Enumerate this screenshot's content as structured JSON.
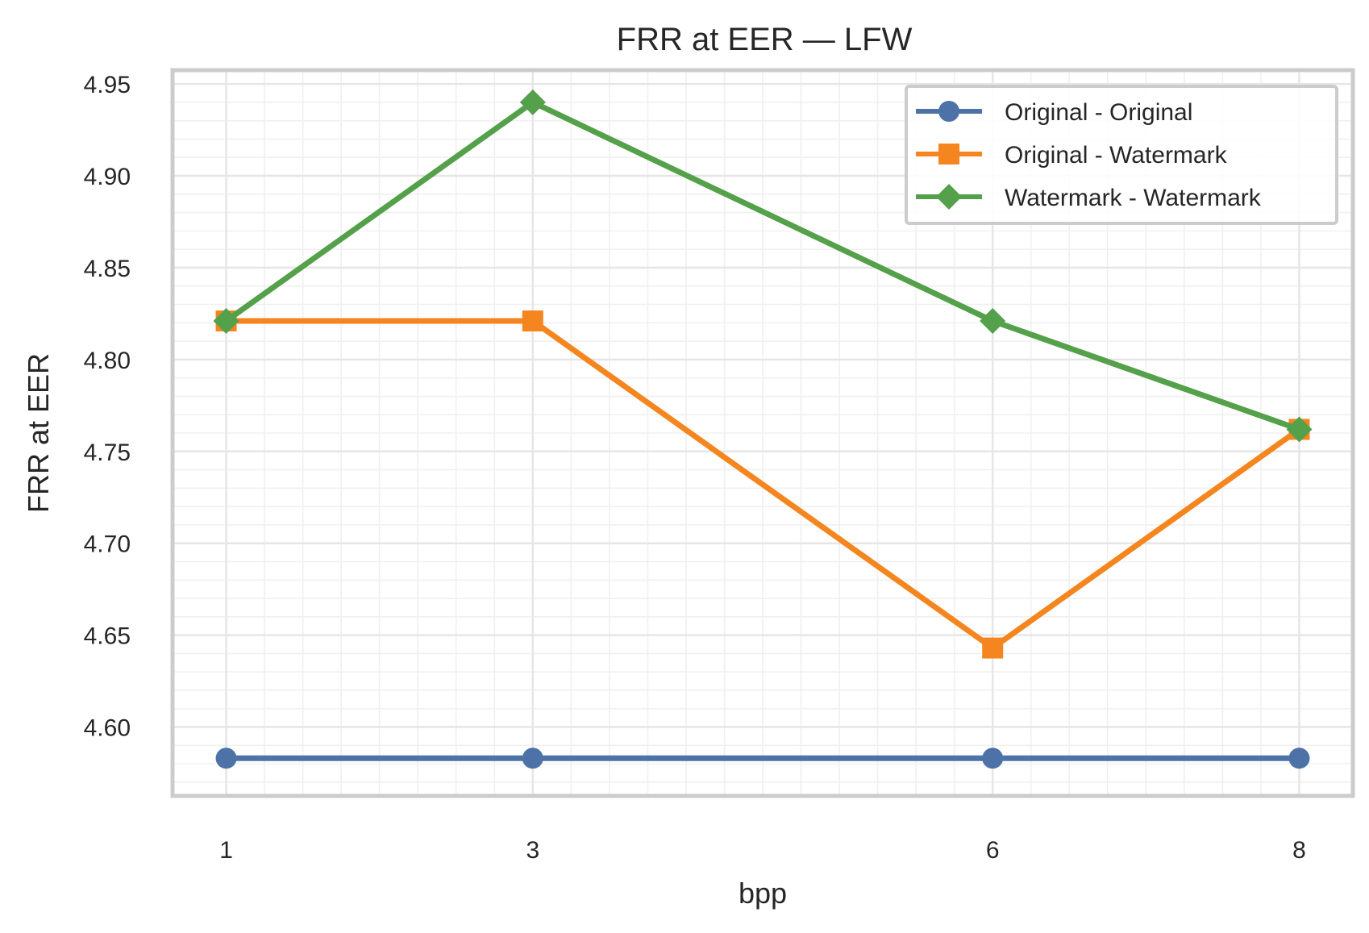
{
  "chart_data": {
    "type": "line",
    "title": "FRR at EER — LFW",
    "xlabel": "bpp",
    "ylabel": "FRR at EER",
    "x": [
      1,
      3,
      6,
      8
    ],
    "xlim": [
      0.65,
      8.35
    ],
    "ylim": [
      4.5625,
      4.9575
    ],
    "y_ticks": [
      "4.60",
      "4.65",
      "4.70",
      "4.75",
      "4.80",
      "4.85",
      "4.90",
      "4.95"
    ],
    "grid": true,
    "legend_position": "top-right",
    "series": [
      {
        "name": "Original - Original",
        "values": [
          4.583,
          4.583,
          4.583,
          4.583
        ],
        "color": "#4c72a8",
        "marker": "circle"
      },
      {
        "name": "Original - Watermark",
        "values": [
          4.821,
          4.821,
          4.643,
          4.762
        ],
        "color": "#f5861f",
        "marker": "square"
      },
      {
        "name": "Watermark - Watermark",
        "values": [
          4.821,
          4.94,
          4.821,
          4.762
        ],
        "color": "#55a04a",
        "marker": "diamond"
      }
    ]
  }
}
